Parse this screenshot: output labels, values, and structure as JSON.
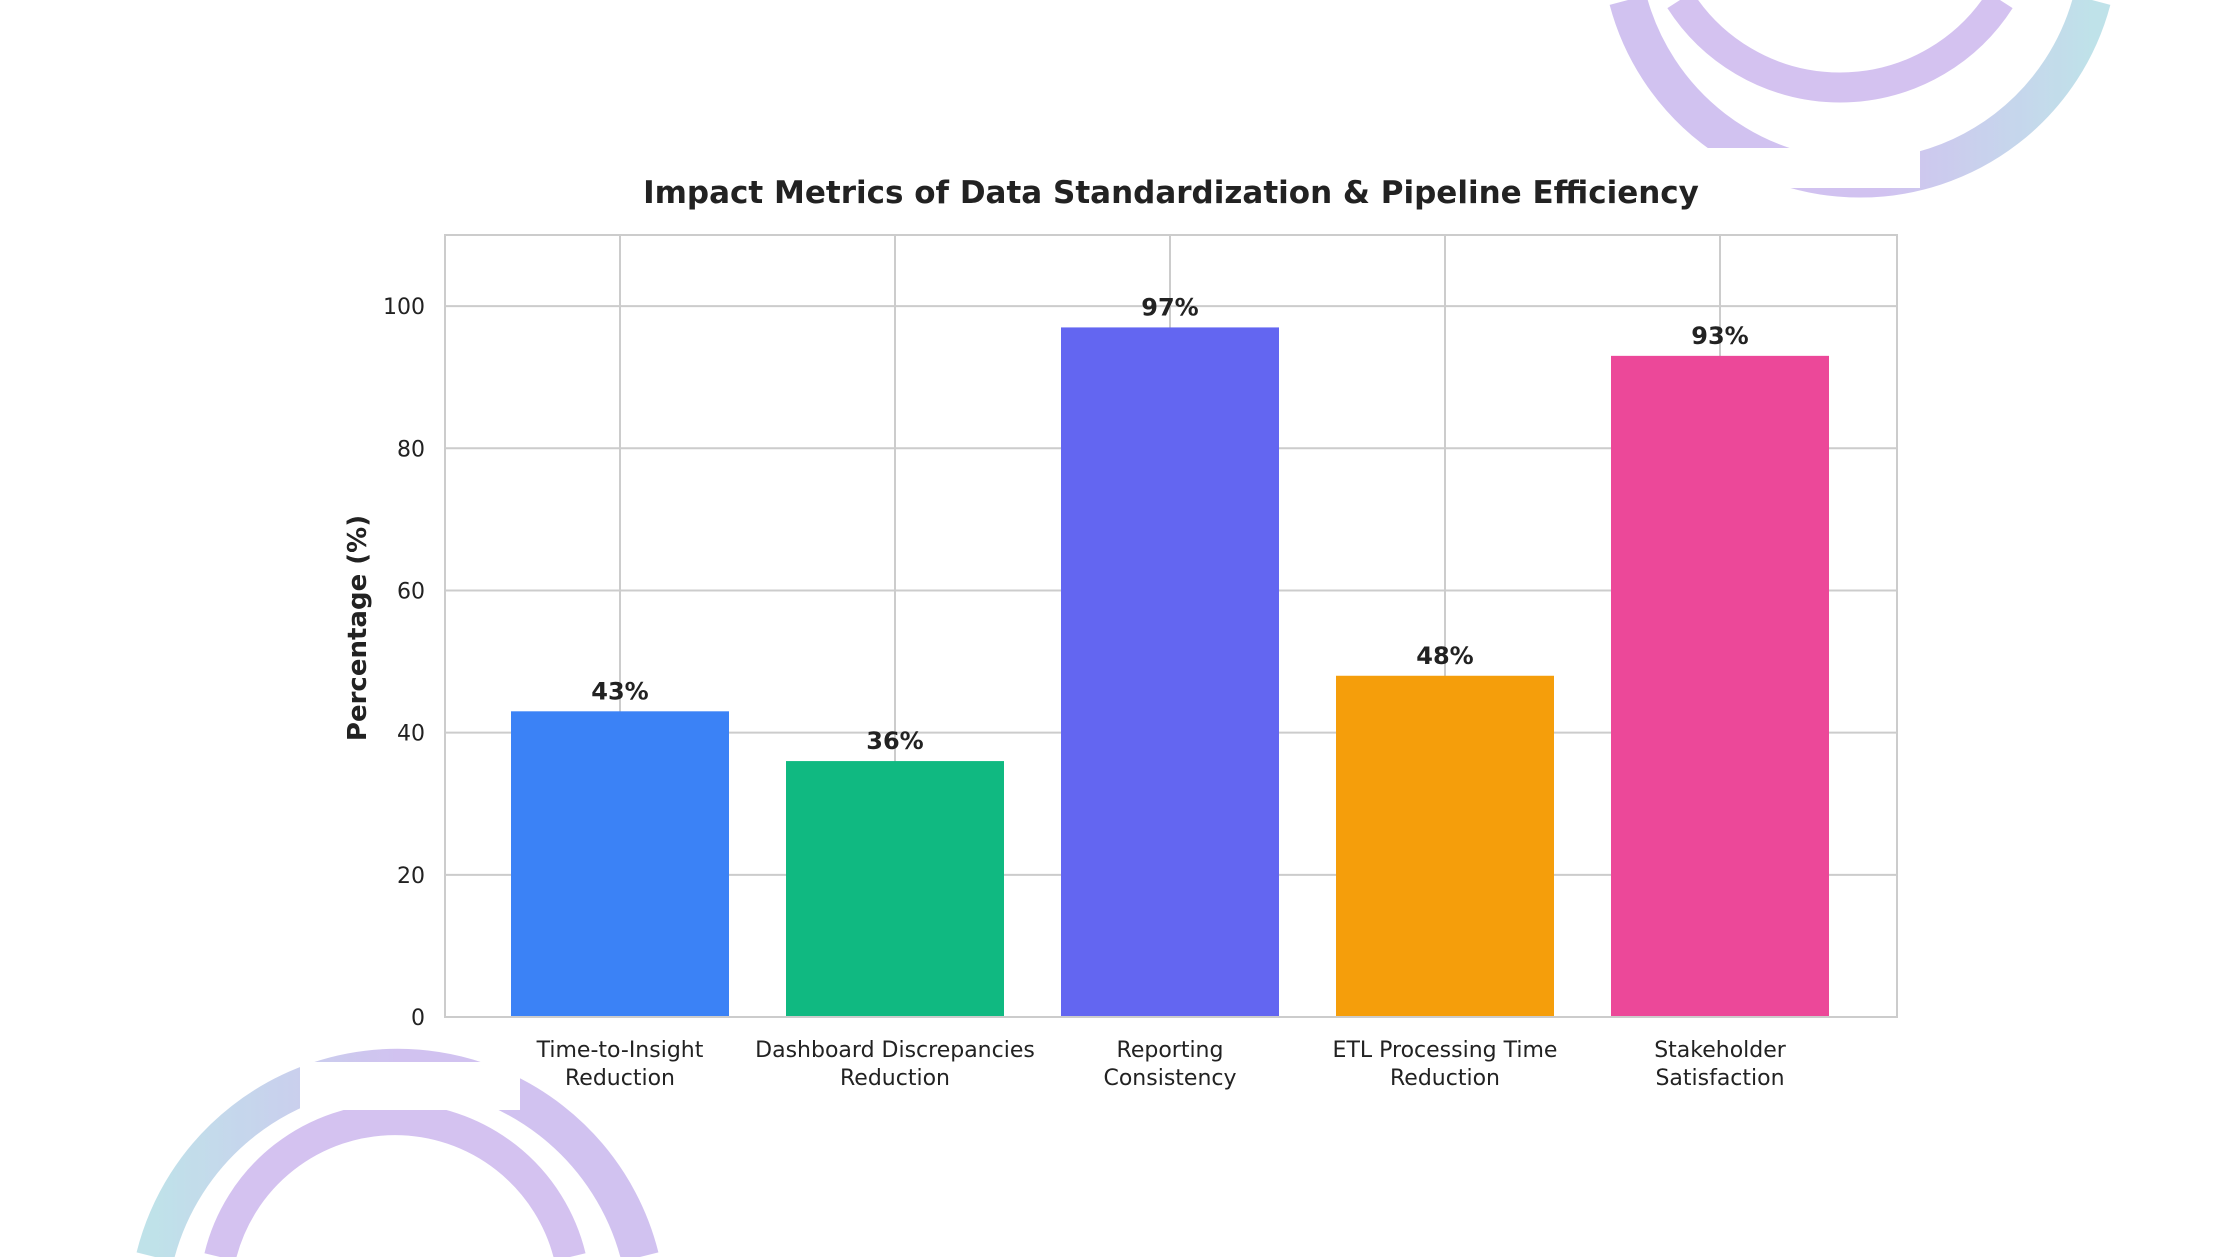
{
  "chart_data": {
    "type": "bar",
    "title": "Impact Metrics of Data Standardization & Pipeline Efficiency",
    "xlabel": "",
    "ylabel": "Percentage (%)",
    "categories": [
      [
        "Time-to-Insight",
        "Reduction"
      ],
      [
        "Dashboard Discrepancies",
        "Reduction"
      ],
      [
        "Reporting",
        "Consistency"
      ],
      [
        "ETL Processing Time",
        "Reduction"
      ],
      [
        "Stakeholder",
        "Satisfaction"
      ]
    ],
    "values": [
      43,
      36,
      97,
      48,
      93
    ],
    "value_labels": [
      "43%",
      "36%",
      "97%",
      "48%",
      "93%"
    ],
    "colors": [
      "#3b82f6",
      "#10b981",
      "#6366f1",
      "#f59e0b",
      "#ec4899"
    ],
    "ylim": [
      0,
      110
    ],
    "yticks": [
      0,
      20,
      40,
      60,
      80,
      100
    ],
    "grid": true,
    "legend": "none"
  },
  "decoration": {
    "gradient_start": "#add8e6",
    "gradient_end": "#c8a2e8"
  }
}
